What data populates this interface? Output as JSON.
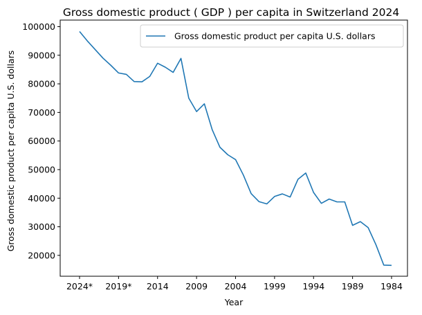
{
  "chart_data": {
    "type": "line",
    "title": "Gross domestic product ( GDP ) per capita in Switzerland 2024",
    "xlabel": "Year",
    "ylabel": "Gross domestic product per capita U.S. dollars",
    "legend": {
      "position": "top-right",
      "entries": [
        "Gross domestic product per capita U.S. dollars"
      ]
    },
    "x_tick_labels": [
      "2024*",
      "2019*",
      "2014",
      "2009",
      "2004",
      "1999",
      "1994",
      "1989",
      "1984"
    ],
    "y_ticks": [
      20000,
      30000,
      40000,
      50000,
      60000,
      70000,
      80000,
      90000,
      100000
    ],
    "ylim": [
      12700,
      102300
    ],
    "series": [
      {
        "name": "Gross domestic product per capita U.S. dollars",
        "color": "#1f77b4",
        "categories": [
          "2024*",
          "2023*",
          "2022*",
          "2021*",
          "2020*",
          "2019*",
          "2018",
          "2017",
          "2016",
          "2015",
          "2014",
          "2013",
          "2012",
          "2011",
          "2010",
          "2009",
          "2008",
          "2007",
          "2006",
          "2005",
          "2004",
          "2003",
          "2002",
          "2001",
          "2000",
          "1999",
          "1998",
          "1997",
          "1996",
          "1995",
          "1994",
          "1993",
          "1992",
          "1991",
          "1990",
          "1989",
          "1988",
          "1987",
          "1986",
          "1985",
          "1984"
        ],
        "values": [
          98300,
          95000,
          92000,
          89000,
          86500,
          83800,
          83300,
          80800,
          80700,
          82600,
          87200,
          85800,
          84000,
          88900,
          75000,
          70300,
          73000,
          64000,
          57800,
          55200,
          53500,
          48100,
          41600,
          38800,
          38000,
          40600,
          41500,
          40400,
          46600,
          48800,
          42000,
          38200,
          39700,
          38700,
          38700,
          30500,
          31800,
          29700,
          23700,
          16600,
          16500
        ]
      }
    ]
  }
}
